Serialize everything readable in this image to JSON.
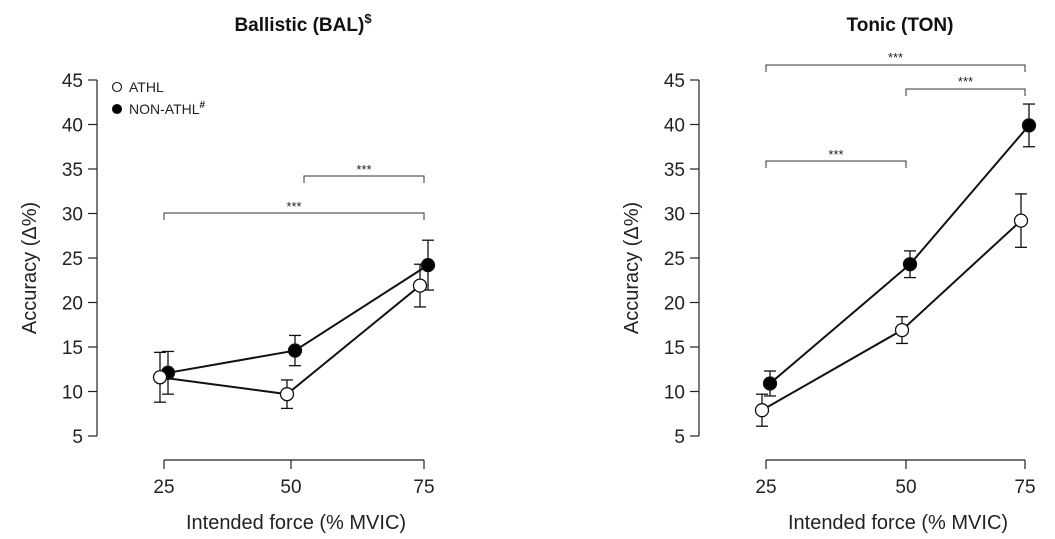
{
  "chart_data": [
    {
      "type": "line",
      "title": "Ballistic (BAL)",
      "title_superscript": "$",
      "xlabel": "Intended force (% MVIC)",
      "ylabel": "Accuracy (Δ%)",
      "x": [
        25,
        50,
        75
      ],
      "xticks": [
        "25",
        "50",
        "75"
      ],
      "yticks": [
        "5",
        "10",
        "15",
        "20",
        "25",
        "30",
        "35",
        "40",
        "45"
      ],
      "ylim": [
        5,
        45
      ],
      "legend": {
        "placement": "top-left",
        "entries": [
          {
            "label": "ATHL",
            "superscript": ""
          },
          {
            "label": "NON-ATHL",
            "superscript": "#"
          }
        ]
      },
      "series": [
        {
          "name": "ATHL",
          "marker": "open-circle",
          "values": [
            11.6,
            9.7,
            21.9
          ],
          "errors": [
            2.8,
            1.6,
            2.4
          ]
        },
        {
          "name": "NON-ATHL",
          "marker": "filled-circle",
          "values": [
            12.1,
            14.6,
            24.2
          ],
          "errors": [
            2.4,
            1.7,
            2.8
          ]
        }
      ],
      "significance": [
        {
          "from": 50,
          "to": 75,
          "label": "***"
        },
        {
          "from": 25,
          "to": 75,
          "label": "***"
        }
      ]
    },
    {
      "type": "line",
      "title": "Tonic (TON)",
      "title_superscript": "",
      "xlabel": "Intended force (% MVIC)",
      "ylabel": "Accuracy (Δ%)",
      "x": [
        25,
        50,
        75
      ],
      "xticks": [
        "25",
        "50",
        "75"
      ],
      "yticks": [
        "5",
        "10",
        "15",
        "20",
        "25",
        "30",
        "35",
        "40",
        "45"
      ],
      "ylim": [
        5,
        45
      ],
      "legend": null,
      "series": [
        {
          "name": "ATHL",
          "marker": "open-circle",
          "values": [
            7.9,
            16.9,
            29.2
          ],
          "errors": [
            1.8,
            1.5,
            3.0
          ]
        },
        {
          "name": "NON-ATHL",
          "marker": "filled-circle",
          "values": [
            10.9,
            24.3,
            39.9
          ],
          "errors": [
            1.4,
            1.5,
            2.4
          ]
        }
      ],
      "significance": [
        {
          "from": 25,
          "to": 75,
          "label": "***"
        },
        {
          "from": 50,
          "to": 75,
          "label": "***"
        },
        {
          "from": 25,
          "to": 50,
          "label": "***"
        }
      ]
    }
  ]
}
